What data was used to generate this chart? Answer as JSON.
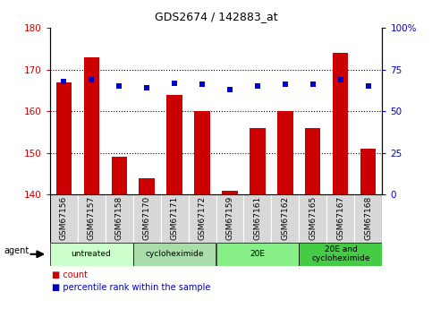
{
  "title": "GDS2674 / 142883_at",
  "categories": [
    "GSM67156",
    "GSM67157",
    "GSM67158",
    "GSM67170",
    "GSM67171",
    "GSM67172",
    "GSM67159",
    "GSM67161",
    "GSM67162",
    "GSM67165",
    "GSM67167",
    "GSM67168"
  ],
  "bar_values": [
    167,
    173,
    149,
    144,
    164,
    160,
    141,
    156,
    160,
    156,
    174,
    151
  ],
  "bar_baseline": 140,
  "dot_values": [
    68,
    69,
    65,
    64,
    67,
    66,
    63,
    65,
    66,
    66,
    69,
    65
  ],
  "bar_color": "#cc0000",
  "dot_color": "#0000cc",
  "ylim_left": [
    140,
    180
  ],
  "ylim_right": [
    0,
    100
  ],
  "yticks_left": [
    140,
    150,
    160,
    170,
    180
  ],
  "yticks_right": [
    0,
    25,
    50,
    75,
    100
  ],
  "grid_ticks": [
    150,
    160,
    170
  ],
  "agent_groups": [
    {
      "label": "untreated",
      "start": 0,
      "end": 3,
      "color": "#ccffcc"
    },
    {
      "label": "cycloheximide",
      "start": 3,
      "end": 6,
      "color": "#aaddaa"
    },
    {
      "label": "20E",
      "start": 6,
      "end": 9,
      "color": "#88ee88"
    },
    {
      "label": "20E and\ncycloheximide",
      "start": 9,
      "end": 12,
      "color": "#44cc44"
    }
  ],
  "legend_count_color": "#cc0000",
  "legend_dot_color": "#0000cc",
  "legend_count_label": "count",
  "legend_dot_label": "percentile rank within the sample",
  "agent_label": "agent",
  "tick_label_color_left": "#cc0000",
  "tick_label_color_right": "#0000cc",
  "cat_box_color": "#d8d8d8",
  "plot_bg_color": "#ffffff",
  "border_color": "#000000"
}
